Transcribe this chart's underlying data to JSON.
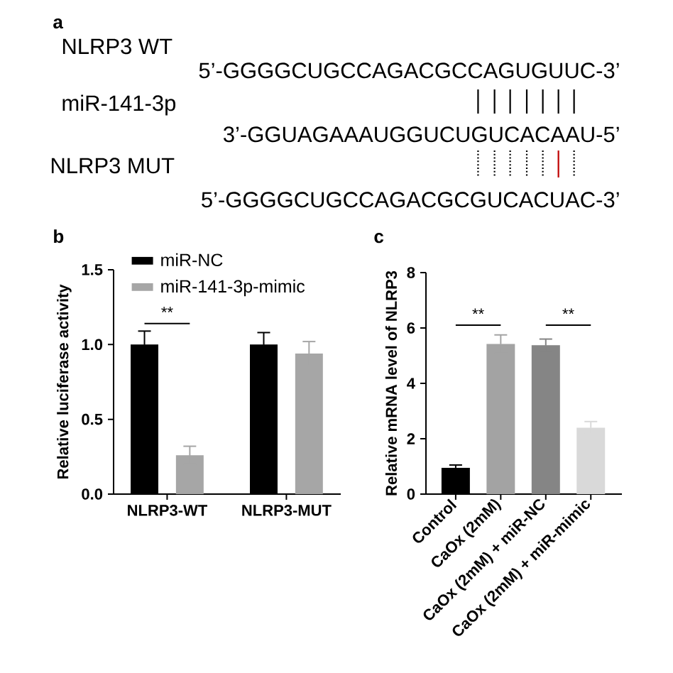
{
  "chart_data": [
    {
      "type": "other",
      "title": "a",
      "annotations": [
        "NLRP3 WT",
        "5’-GGGGCUGCCAGACGCCAGUGUUC-3’",
        "miR-141-3p",
        "3’-GGUAGAAAUGGUCUGUCACAAU-5’",
        "NLRP3 MUT",
        "5’-GGGGCUGCCAGACGCGUCACUAC-3’"
      ]
    },
    {
      "type": "bar",
      "title": "b",
      "ylabel": "Relative luciferase activity",
      "categories": [
        "NLRP3-WT",
        "NLRP3-MUT"
      ],
      "series": [
        {
          "name": "miR-NC",
          "color": "#000000",
          "values": [
            1.0,
            1.0
          ],
          "errors": [
            0.09,
            0.08
          ]
        },
        {
          "name": "miR-141-3p-mimic",
          "color": "#a6a6a6",
          "values": [
            0.26,
            0.94
          ],
          "errors": [
            0.06,
            0.08
          ]
        }
      ],
      "ylim": [
        0,
        1.5
      ],
      "yticks": [
        {
          "value": 0,
          "label": "0.0"
        },
        0.5,
        {
          "value": 1,
          "label": "1.0"
        },
        1.5
      ],
      "legend": "top left",
      "annotations": [
        "**"
      ]
    },
    {
      "type": "bar",
      "title": "c",
      "ylabel": "Relative mRNA level of NLRP3",
      "categories": [
        "Control",
        "CaOx (2mM)",
        "CaOx (2mM) + miR-NC",
        "CaOx (2mM) + miR-mimic"
      ],
      "values": [
        0.95,
        5.42,
        5.38,
        2.4
      ],
      "colors": [
        "#000000",
        "#a3a3a3",
        "#858585",
        "#d9d9d9"
      ],
      "errors": [
        0.1,
        0.33,
        0.22,
        0.22
      ],
      "ylim": [
        0,
        8
      ],
      "yticks": [
        0,
        2,
        4,
        6,
        8
      ],
      "annotations": [
        "**",
        "**"
      ]
    }
  ]
}
